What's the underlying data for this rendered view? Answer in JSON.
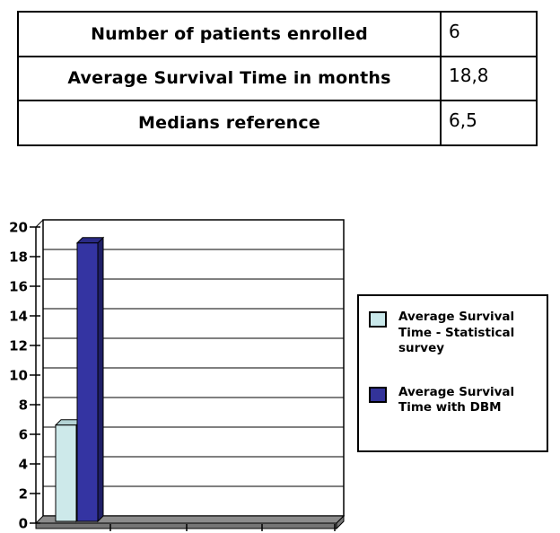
{
  "table": {
    "rows": [
      {
        "label": "Number of patients enrolled",
        "value": "6"
      },
      {
        "label": "Average Survival Time in months",
        "value": "18,8"
      },
      {
        "label": "Medians reference",
        "value": "6,5"
      }
    ]
  },
  "chart_data": {
    "type": "bar",
    "style": "3d-column",
    "title": "",
    "xlabel": "",
    "ylabel": "",
    "categories": [
      ""
    ],
    "series": [
      {
        "name": "Average Survival Time - Statistical survey",
        "values": [
          6.5
        ]
      },
      {
        "name": "Average Survival Time with DBM",
        "values": [
          18.8
        ]
      }
    ],
    "ylim": [
      0,
      20
    ],
    "ytick_step": 2,
    "yticks": [
      "0",
      "2",
      "4",
      "6",
      "8",
      "10",
      "12",
      "14",
      "16",
      "18",
      "20"
    ],
    "grid": true,
    "legend_position": "right",
    "legend": [
      {
        "label": "Average Survival Time - Statistical survey",
        "lines": [
          "Average Survival",
          "Time - Statistical",
          "survey"
        ],
        "color": "#c9e8ea"
      },
      {
        "label": "Average Survival Time with DBM",
        "lines": [
          "Average Survival",
          "Time with DBM"
        ],
        "color": "#333399"
      }
    ],
    "colors": {
      "bar1_front": "#cde9ea",
      "bar1_side": "#9dbfc2",
      "bar1_top": "#b3d2d4",
      "bar2_front": "#3434a2",
      "bar2_side": "#1f1f66",
      "bar2_top": "#2a2a85",
      "floor_top": "#8c8c8c",
      "floor_front": "#757575",
      "wall": "#ffffff",
      "line": "#000000"
    }
  }
}
